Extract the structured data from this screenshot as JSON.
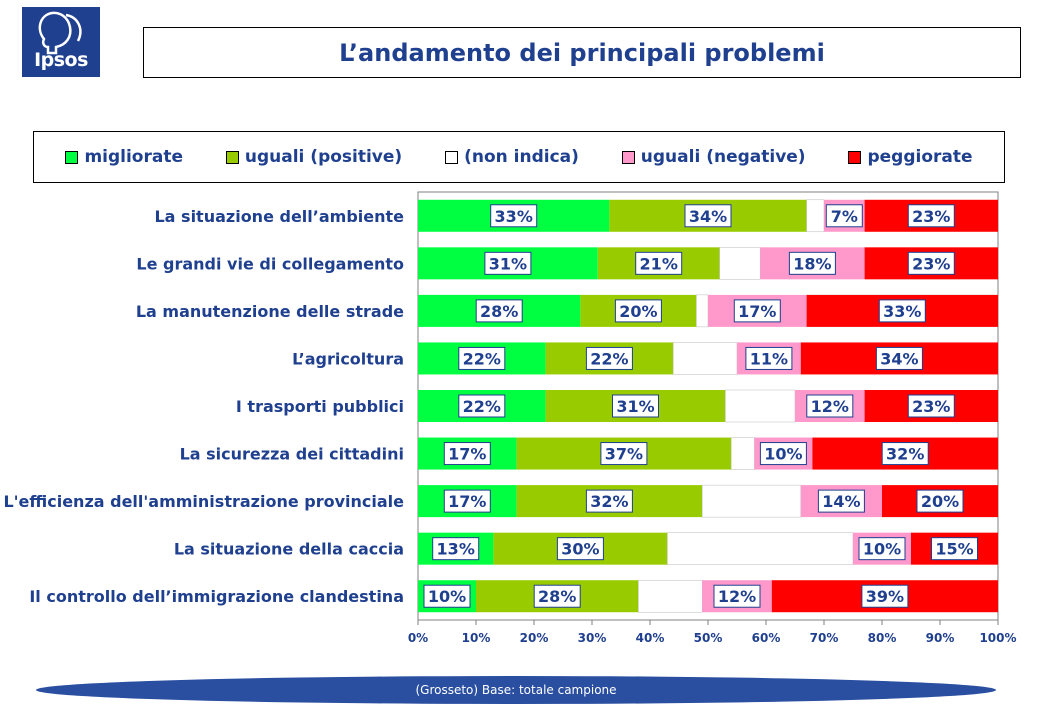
{
  "logo": {
    "text": "Ipsos"
  },
  "colors": {
    "migliorate": "#00ff40",
    "uguali_positive": "#99cc00",
    "non_indica": "#ffffff",
    "uguali_negative": "#ff99cc",
    "peggiorate": "#ff0000"
  },
  "footer": {
    "text": "(Grosseto)  Base: totale campione"
  },
  "chart_data": {
    "type": "bar",
    "orientation": "horizontal",
    "stacked": true,
    "title": "L’andamento dei principali problemi",
    "categories": [
      "La situazione dell’ambiente",
      "Le grandi vie di collegamento",
      "La manutenzione delle strade",
      "L’agricoltura",
      "I trasporti pubblici",
      "La sicurezza dei cittadini",
      "L'efficienza dell'amministrazione provinciale",
      "La situazione della caccia",
      "Il controllo dell’immigrazione clandestina"
    ],
    "series": [
      {
        "name": "migliorate",
        "color": "#00ff40",
        "values": [
          33,
          31,
          28,
          22,
          22,
          17,
          17,
          13,
          10
        ]
      },
      {
        "name": "uguali (positive)",
        "color": "#99cc00",
        "values": [
          34,
          21,
          20,
          22,
          31,
          37,
          32,
          30,
          28
        ]
      },
      {
        "name": "(non indica)",
        "color": "#ffffff",
        "values": [
          3,
          7,
          2,
          11,
          12,
          4,
          17,
          32,
          11
        ]
      },
      {
        "name": "uguali (negative)",
        "color": "#ff99cc",
        "values": [
          7,
          18,
          17,
          11,
          12,
          10,
          14,
          10,
          12
        ]
      },
      {
        "name": "peggiorate",
        "color": "#ff0000",
        "values": [
          23,
          23,
          33,
          34,
          23,
          32,
          20,
          15,
          39
        ]
      }
    ],
    "labeled_series": [
      "migliorate",
      "uguali (positive)",
      "uguali (negative)",
      "peggiorate"
    ],
    "xlim": [
      0,
      100
    ],
    "xticks": [
      "0%",
      "10%",
      "20%",
      "30%",
      "40%",
      "50%",
      "60%",
      "70%",
      "80%",
      "90%",
      "100%"
    ],
    "legend_position": "top",
    "grid": false
  }
}
